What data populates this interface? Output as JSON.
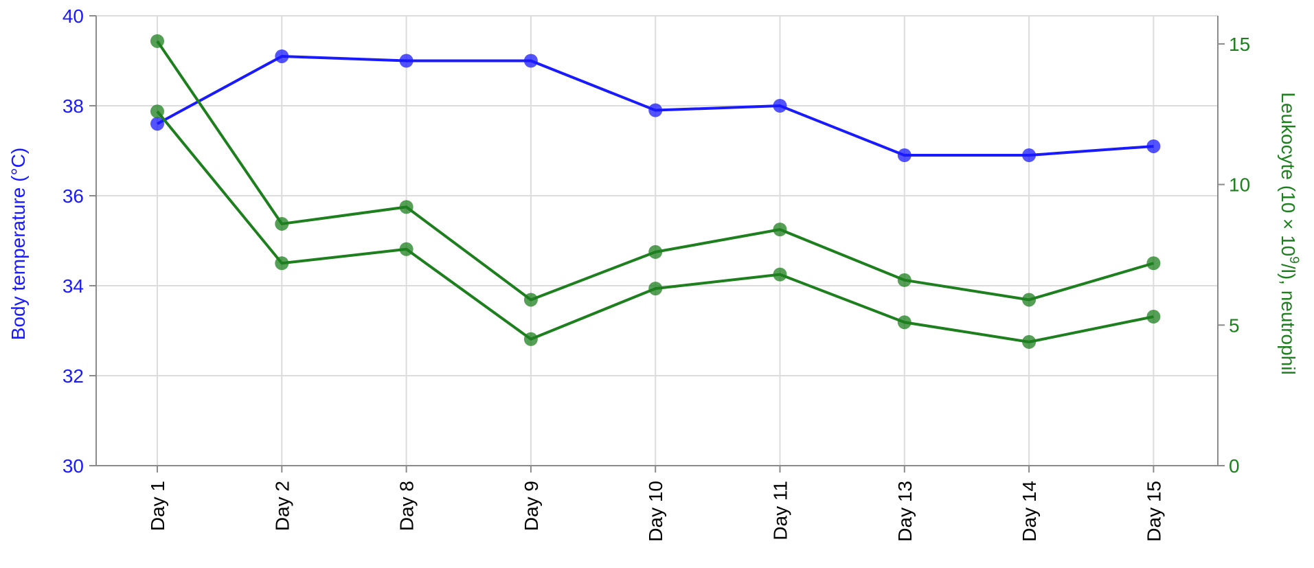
{
  "chart_data": {
    "type": "line",
    "categories": [
      "Day 1",
      "Day 2",
      "Day 8",
      "Day 9",
      "Day 10",
      "Day 11",
      "Day 13",
      "Day 14",
      "Day 15"
    ],
    "ylabel_left": "Body temperature (°C)",
    "ylabel_right_parts": [
      "Leukocyte (10 × 10",
      "9",
      "/l), neutrophil"
    ],
    "y_left": {
      "lim": [
        30,
        40
      ],
      "ticks": [
        30,
        32,
        34,
        36,
        38,
        40
      ]
    },
    "y_right": {
      "lim": [
        0,
        16
      ],
      "ticks": [
        0,
        5,
        10,
        15
      ]
    },
    "series": [
      {
        "axis": "left",
        "color": "#1a1aff",
        "values": [
          37.6,
          39.1,
          39.0,
          39.0,
          37.9,
          38.0,
          36.9,
          36.9,
          37.1
        ]
      },
      {
        "axis": "right",
        "color": "#1e7f1e",
        "values": [
          15.1,
          8.6,
          9.2,
          5.9,
          7.6,
          8.4,
          6.6,
          5.9,
          7.2
        ]
      },
      {
        "axis": "right",
        "color": "#1e7f1e",
        "values": [
          12.6,
          7.2,
          7.7,
          4.5,
          6.3,
          6.8,
          5.1,
          4.4,
          5.3
        ]
      }
    ],
    "colors": {
      "left_axis": "#1a1aff",
      "right_axis": "#1e7f1e"
    },
    "grid": true
  }
}
